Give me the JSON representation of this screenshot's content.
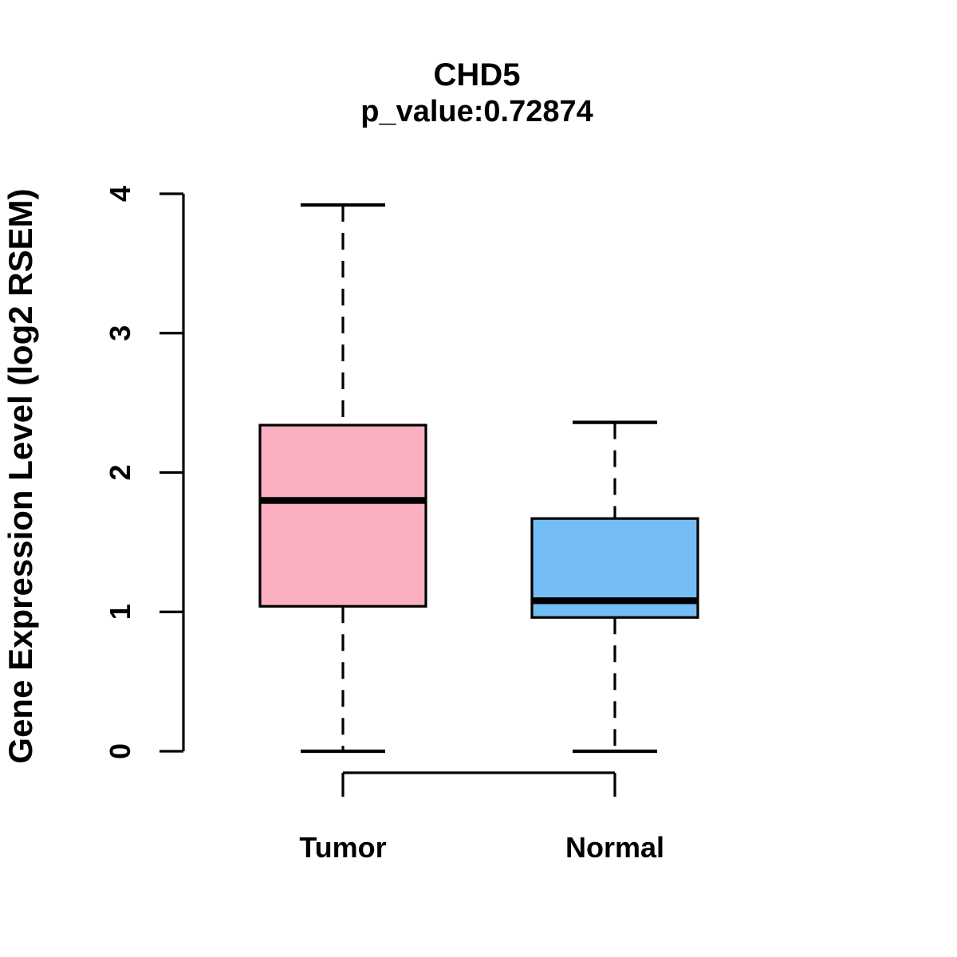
{
  "header": {
    "title": "CHD5",
    "subtitle": "p_value:0.72874"
  },
  "axes": {
    "ylabel": "Gene Expression Level (log2 RSEM)",
    "ytick_labels": [
      "0",
      "1",
      "2",
      "3",
      "4"
    ]
  },
  "categories_labels": [
    "Tumor",
    "Normal"
  ],
  "colors": {
    "tumor_fill": "#FCAFC0",
    "normal_fill": "#74BEF5",
    "stroke": "#000000",
    "background": "#FFFFFF"
  },
  "chart_data": {
    "type": "boxplot",
    "title": "CHD5",
    "subtitle": "p_value:0.72874",
    "ylabel": "Gene Expression Level (log2 RSEM)",
    "xlabel": "",
    "categories": [
      "Tumor",
      "Normal"
    ],
    "ylim": [
      0,
      4
    ],
    "yticks": [
      0,
      1,
      2,
      3,
      4
    ],
    "grid": false,
    "legend": "none",
    "series": [
      {
        "name": "Tumor",
        "color": "#FCAFC0",
        "whisker_low": 0,
        "q1": 1.04,
        "median": 1.8,
        "q3": 2.34,
        "whisker_high": 3.92,
        "outliers": []
      },
      {
        "name": "Normal",
        "color": "#74BEF5",
        "whisker_low": 0,
        "q1": 0.96,
        "median": 1.08,
        "q3": 1.67,
        "whisker_high": 2.36,
        "outliers": []
      }
    ]
  }
}
